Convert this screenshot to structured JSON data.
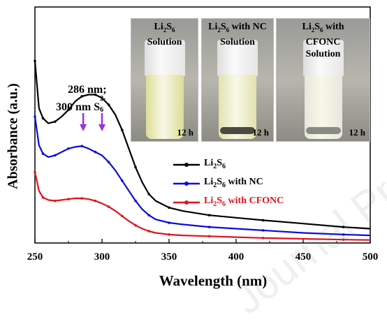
{
  "chart_data": {
    "type": "line",
    "xlabel": "Wavelength (nm)",
    "ylabel": "Absorbance (a.u.)",
    "xlim": [
      250,
      500
    ],
    "x_ticks": [
      "250",
      "300",
      "350",
      "400",
      "450",
      "500"
    ],
    "y_ticks": [],
    "legend_position": "right-middle",
    "annotation": {
      "line1": "286 nm;",
      "line2": "300 nm S",
      "line2_sup": "2-",
      "line2_sub": "6",
      "arrows_at_x": [
        286,
        300
      ]
    },
    "series": [
      {
        "name": "Li2S6",
        "legend": {
          "pre": "Li",
          "s1": "2",
          "mid": "S",
          "s2": "6",
          "post": ""
        },
        "color": "#000000",
        "x": [
          250,
          253,
          256,
          260,
          265,
          270,
          275,
          280,
          285,
          290,
          295,
          300,
          305,
          310,
          315,
          320,
          325,
          330,
          335,
          340,
          350,
          360,
          380,
          400,
          420,
          450,
          480,
          500
        ],
        "y": [
          1.08,
          0.8,
          0.74,
          0.71,
          0.72,
          0.75,
          0.79,
          0.84,
          0.87,
          0.88,
          0.88,
          0.86,
          0.82,
          0.76,
          0.67,
          0.56,
          0.45,
          0.36,
          0.29,
          0.25,
          0.21,
          0.19,
          0.165,
          0.15,
          0.135,
          0.115,
          0.095,
          0.085
        ]
      },
      {
        "name": "Li2S6 with NC",
        "legend": {
          "pre": "Li",
          "s1": "2",
          "mid": "S",
          "s2": "6",
          "post": " with NC"
        },
        "color": "#0b0bdc",
        "x": [
          250,
          253,
          256,
          260,
          265,
          270,
          275,
          280,
          285,
          290,
          295,
          300,
          305,
          310,
          315,
          320,
          325,
          330,
          335,
          340,
          350,
          360,
          380,
          400,
          420,
          450,
          480,
          500
        ],
        "y": [
          0.75,
          0.58,
          0.53,
          0.51,
          0.52,
          0.54,
          0.56,
          0.57,
          0.575,
          0.56,
          0.54,
          0.52,
          0.48,
          0.43,
          0.37,
          0.31,
          0.25,
          0.2,
          0.165,
          0.14,
          0.12,
          0.11,
          0.095,
          0.085,
          0.075,
          0.06,
          0.05,
          0.045
        ]
      },
      {
        "name": "Li2S6 with CFONC",
        "legend": {
          "pre": "Li",
          "s1": "2",
          "mid": "S",
          "s2": "6",
          "post": " with  CFONC"
        },
        "color": "#e0141e",
        "x": [
          250,
          253,
          256,
          260,
          265,
          270,
          275,
          280,
          285,
          290,
          295,
          300,
          305,
          310,
          315,
          320,
          325,
          330,
          335,
          340,
          350,
          360,
          380,
          400,
          420,
          450,
          480,
          500
        ],
        "y": [
          0.42,
          0.31,
          0.27,
          0.255,
          0.25,
          0.255,
          0.26,
          0.265,
          0.265,
          0.26,
          0.25,
          0.235,
          0.215,
          0.19,
          0.16,
          0.13,
          0.105,
          0.085,
          0.07,
          0.06,
          0.05,
          0.045,
          0.04,
          0.035,
          0.03,
          0.025,
          0.02,
          0.018
        ]
      }
    ]
  },
  "inset_photos": [
    {
      "title_pre": "Li",
      "s1": "2",
      "mid": "S",
      "s2": "6",
      "title_rest": "Solution",
      "line1_post": "",
      "time": "12 h",
      "liquid": "#dcdd96",
      "sediment": "",
      "cap": "#f1f1f1"
    },
    {
      "title_pre": "Li",
      "s1": "2",
      "mid": "S",
      "s2": "6",
      "title_rest": "Solution",
      "line1_post": " with NC",
      "time": "12 h",
      "liquid": "#e3e2ad",
      "sediment": "#4a4a43",
      "cap": "#f1f1f1"
    },
    {
      "title_pre": "Li",
      "s1": "2",
      "mid": "S",
      "s2": "6",
      "title_rest": "CFONC",
      "line1_post": " with",
      "line3": "Solution",
      "time": "12 h",
      "liquid": "#e6e6dd",
      "sediment": "#8a8a85",
      "cap": "#f1f1f1"
    }
  ],
  "watermark": "Journal Pre-proofs"
}
